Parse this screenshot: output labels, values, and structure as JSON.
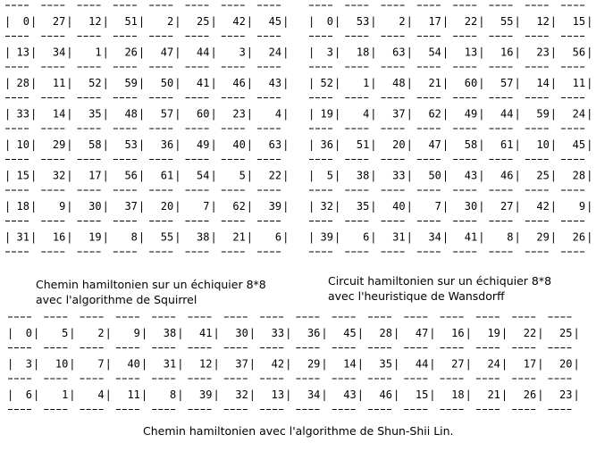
{
  "boards": [
    {
      "rows": [
        [
          "0",
          "27",
          "12",
          "51",
          "2",
          "25",
          "42",
          "45"
        ],
        [
          "13",
          "34",
          "1",
          "26",
          "47",
          "44",
          "3",
          "24"
        ],
        [
          "28",
          "11",
          "52",
          "59",
          "50",
          "41",
          "46",
          "43"
        ],
        [
          "33",
          "14",
          "35",
          "48",
          "57",
          "60",
          "23",
          "4"
        ],
        [
          "10",
          "29",
          "58",
          "53",
          "36",
          "49",
          "40",
          "63"
        ],
        [
          "15",
          "32",
          "17",
          "56",
          "61",
          "54",
          "5",
          "22"
        ],
        [
          "18",
          "9",
          "30",
          "37",
          "20",
          "7",
          "62",
          "39"
        ],
        [
          "31",
          "16",
          "19",
          "8",
          "55",
          "38",
          "21",
          "6"
        ]
      ],
      "caption_line1": "Chemin hamiltonien sur un échiquier 8*8",
      "caption_line2": "avec l'algorithme de Squirrel"
    },
    {
      "rows": [
        [
          "0",
          "53",
          "2",
          "17",
          "22",
          "55",
          "12",
          "15"
        ],
        [
          "3",
          "18",
          "63",
          "54",
          "13",
          "16",
          "23",
          "56"
        ],
        [
          "52",
          "1",
          "48",
          "21",
          "60",
          "57",
          "14",
          "11"
        ],
        [
          "19",
          "4",
          "37",
          "62",
          "49",
          "44",
          "59",
          "24"
        ],
        [
          "36",
          "51",
          "20",
          "47",
          "58",
          "61",
          "10",
          "45"
        ],
        [
          "5",
          "38",
          "33",
          "50",
          "43",
          "46",
          "25",
          "28"
        ],
        [
          "32",
          "35",
          "40",
          "7",
          "30",
          "27",
          "42",
          "9"
        ],
        [
          "39",
          "6",
          "31",
          "34",
          "41",
          "8",
          "29",
          "26"
        ]
      ],
      "caption_line1": "Circuit hamiltonien sur un échiquier 8*8",
      "caption_line2": "avec l'heuristique de Wansdorff"
    },
    {
      "rows": [
        [
          "0",
          "5",
          "2",
          "9",
          "38",
          "41",
          "30",
          "33",
          "36",
          "45",
          "28",
          "47",
          "16",
          "19",
          "22",
          "25"
        ],
        [
          "3",
          "10",
          "7",
          "40",
          "31",
          "12",
          "37",
          "42",
          "29",
          "14",
          "35",
          "44",
          "27",
          "24",
          "17",
          "20"
        ],
        [
          "6",
          "1",
          "4",
          "11",
          "8",
          "39",
          "32",
          "13",
          "34",
          "43",
          "46",
          "15",
          "18",
          "21",
          "26",
          "23"
        ]
      ],
      "caption_line1": "Chemin hamiltonien avec l'algorithme de Shun-Shii Lin."
    }
  ]
}
